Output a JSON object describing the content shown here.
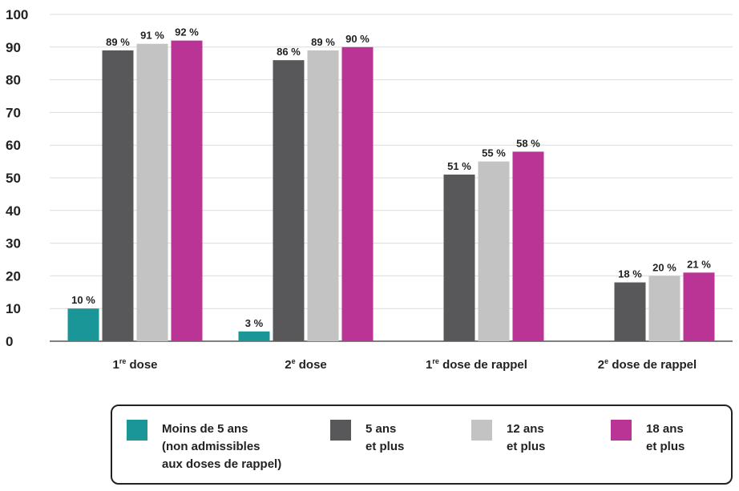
{
  "chart_data": {
    "type": "bar",
    "categories": [
      {
        "base": "1",
        "sup": "re",
        "rest": " dose"
      },
      {
        "base": "2",
        "sup": "e",
        "rest": " dose"
      },
      {
        "base": "1",
        "sup": "re",
        "rest": " dose de rappel"
      },
      {
        "base": "2",
        "sup": "e",
        "rest": " dose de rappel"
      }
    ],
    "series": [
      {
        "name": "Moins de 5 ans\n(non admissibles\naux doses de rappel)",
        "color": "#1a9698",
        "values": [
          10,
          3,
          null,
          null
        ],
        "labels": [
          "10 %",
          "3 %",
          "",
          ""
        ]
      },
      {
        "name": "5 ans\net plus",
        "color": "#58585a",
        "values": [
          89,
          86,
          51,
          18
        ],
        "labels": [
          "89 %",
          "86 %",
          "51 %",
          "18 %"
        ]
      },
      {
        "name": "12 ans\net plus",
        "color": "#c3c3c3",
        "values": [
          91,
          89,
          55,
          20
        ],
        "labels": [
          "91 %",
          "89 %",
          "55 %",
          "20 %"
        ]
      },
      {
        "name": "18 ans\net plus",
        "color": "#b93494",
        "values": [
          92,
          90,
          58,
          21
        ],
        "labels": [
          "92 %",
          "90 %",
          "58 %",
          "21 %"
        ]
      }
    ],
    "ylim": [
      0,
      100
    ],
    "yticks": [
      0,
      10,
      20,
      30,
      40,
      50,
      60,
      70,
      80,
      90,
      100
    ],
    "grid": true,
    "legend_position": "bottom"
  }
}
